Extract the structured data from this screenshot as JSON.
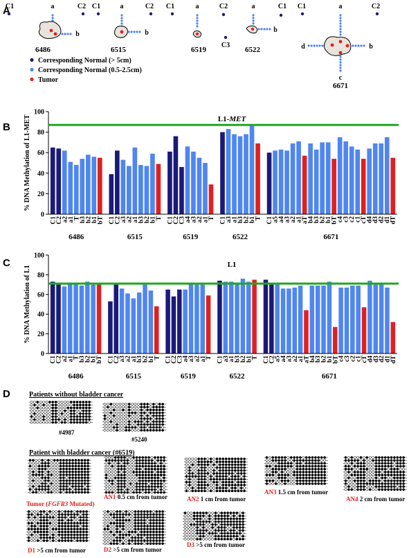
{
  "panelA": {
    "letter": "A",
    "legend": [
      {
        "label": "Corresponding Normal (> 5cm)",
        "color": "#1a1a7a"
      },
      {
        "label": "Corresponding Normal (0.5-2.5cm)",
        "color": "#4f86f0"
      },
      {
        "label": "Tumor",
        "color": "#e02020"
      }
    ],
    "patients": [
      "6486",
      "6515",
      "6519",
      "6522",
      "6671"
    ],
    "tissue_labels": {
      "C1": "C1",
      "C2": "C2",
      "C3": "C3",
      "a": "a",
      "b": "b",
      "c": "c",
      "d": "d"
    }
  },
  "colors": {
    "dark": "#1a1a7a",
    "light": "#4f86f0",
    "tumor": "#e02020",
    "line": "#1fa81f"
  },
  "chart_data": [
    {
      "type": "bar",
      "panel": "B",
      "title": "L1-MET",
      "ylabel": "% DNA Methylation of L1-MET",
      "ylim": [
        0,
        100
      ],
      "yticks": [
        0,
        20,
        40,
        60,
        80,
        100
      ],
      "reference_line": 87,
      "groups": [
        {
          "patient": "6486",
          "bars": [
            {
              "label": "C1",
              "value": 65,
              "kind": "dark"
            },
            {
              "label": "C2",
              "value": 64,
              "kind": "dark"
            },
            {
              "label": "a2",
              "value": 62,
              "kind": "light"
            },
            {
              "label": "a1",
              "value": 51,
              "kind": "light"
            },
            {
              "label": "T",
              "value": 48,
              "kind": "light"
            },
            {
              "label": "b3",
              "value": 54,
              "kind": "light"
            },
            {
              "label": "b2",
              "value": 58,
              "kind": "light"
            },
            {
              "label": "b1",
              "value": 56,
              "kind": "light"
            },
            {
              "label": "bT",
              "value": 55,
              "kind": "tumor"
            }
          ]
        },
        {
          "patient": "6515",
          "bars": [
            {
              "label": "C1",
              "value": 39,
              "kind": "dark"
            },
            {
              "label": "C2",
              "value": 62,
              "kind": "dark"
            },
            {
              "label": "a3",
              "value": 53,
              "kind": "light"
            },
            {
              "label": "a2",
              "value": 47,
              "kind": "light"
            },
            {
              "label": "a1",
              "value": 65,
              "kind": "light"
            },
            {
              "label": "b3",
              "value": 48,
              "kind": "light"
            },
            {
              "label": "b2",
              "value": 47,
              "kind": "light"
            },
            {
              "label": "b1",
              "value": 59,
              "kind": "light"
            },
            {
              "label": "T",
              "value": 49,
              "kind": "tumor"
            }
          ]
        },
        {
          "patient": "6519",
          "bars": [
            {
              "label": "C1",
              "value": 61,
              "kind": "dark"
            },
            {
              "label": "C2",
              "value": 76,
              "kind": "dark"
            },
            {
              "label": "C3",
              "value": 46,
              "kind": "dark"
            },
            {
              "label": "a4",
              "value": 66,
              "kind": "light"
            },
            {
              "label": "a3",
              "value": 61,
              "kind": "light"
            },
            {
              "label": "a2",
              "value": 55,
              "kind": "light"
            },
            {
              "label": "a1",
              "value": 50,
              "kind": "light"
            },
            {
              "label": "T",
              "value": 29,
              "kind": "tumor"
            }
          ]
        },
        {
          "patient": "6522",
          "bars": [
            {
              "label": "C1",
              "value": 80,
              "kind": "dark"
            },
            {
              "label": "a3",
              "value": 83,
              "kind": "light"
            },
            {
              "label": "a1",
              "value": 78,
              "kind": "light"
            },
            {
              "label": "b3",
              "value": 76,
              "kind": "light"
            },
            {
              "label": "b2",
              "value": 78,
              "kind": "light"
            },
            {
              "label": "b1",
              "value": 87,
              "kind": "light"
            },
            {
              "label": "T",
              "value": 69,
              "kind": "tumor"
            }
          ]
        },
        {
          "patient": "6671",
          "bars": [
            {
              "label": "C1",
              "value": 60,
              "kind": "dark"
            },
            {
              "label": "a5",
              "value": 62,
              "kind": "light"
            },
            {
              "label": "a4",
              "value": 63,
              "kind": "light"
            },
            {
              "label": "a3",
              "value": 62,
              "kind": "light"
            },
            {
              "label": "a2",
              "value": 69,
              "kind": "light"
            },
            {
              "label": "a1",
              "value": 71,
              "kind": "light"
            },
            {
              "label": "aT",
              "value": 57,
              "kind": "tumor"
            },
            {
              "label": "b4",
              "value": 69,
              "kind": "light"
            },
            {
              "label": "b3",
              "value": 63,
              "kind": "light"
            },
            {
              "label": "b2",
              "value": 70,
              "kind": "light"
            },
            {
              "label": "b1",
              "value": 70,
              "kind": "light"
            },
            {
              "label": "bT",
              "value": 54,
              "kind": "tumor"
            },
            {
              "label": "c4",
              "value": 75,
              "kind": "light"
            },
            {
              "label": "c3",
              "value": 71,
              "kind": "light"
            },
            {
              "label": "c2",
              "value": 66,
              "kind": "light"
            },
            {
              "label": "c1",
              "value": 63,
              "kind": "light"
            },
            {
              "label": "cT",
              "value": 54,
              "kind": "tumor"
            },
            {
              "label": "d4",
              "value": 64,
              "kind": "light"
            },
            {
              "label": "d3",
              "value": 69,
              "kind": "light"
            },
            {
              "label": "d2",
              "value": 69,
              "kind": "light"
            },
            {
              "label": "d1",
              "value": 75,
              "kind": "light"
            },
            {
              "label": "dT",
              "value": 55,
              "kind": "tumor"
            }
          ]
        }
      ]
    },
    {
      "type": "bar",
      "panel": "C",
      "title": "L1",
      "ylabel": "% DNA Methylation of L1",
      "ylim": [
        0,
        100
      ],
      "yticks": [
        0,
        20,
        40,
        60,
        80,
        100
      ],
      "reference_line": 71,
      "groups": [
        {
          "patient": "6486",
          "bars": [
            {
              "label": "C1",
              "value": 73,
              "kind": "dark"
            },
            {
              "label": "C2",
              "value": 70,
              "kind": "dark"
            },
            {
              "label": "a2",
              "value": 68,
              "kind": "light"
            },
            {
              "label": "a1",
              "value": 72,
              "kind": "light"
            },
            {
              "label": "T",
              "value": 72,
              "kind": "light"
            },
            {
              "label": "b3",
              "value": 69,
              "kind": "light"
            },
            {
              "label": "b2",
              "value": 73,
              "kind": "light"
            },
            {
              "label": "b1",
              "value": 70,
              "kind": "light"
            },
            {
              "label": "bT",
              "value": 70,
              "kind": "tumor"
            }
          ]
        },
        {
          "patient": "6515",
          "bars": [
            {
              "label": "C1",
              "value": 53,
              "kind": "dark"
            },
            {
              "label": "C2",
              "value": 70,
              "kind": "dark"
            },
            {
              "label": "a3",
              "value": 66,
              "kind": "light"
            },
            {
              "label": "a2",
              "value": 61,
              "kind": "light"
            },
            {
              "label": "a1",
              "value": 56,
              "kind": "light"
            },
            {
              "label": "b3",
              "value": 62,
              "kind": "light"
            },
            {
              "label": "b2",
              "value": 70,
              "kind": "light"
            },
            {
              "label": "b1",
              "value": 64,
              "kind": "light"
            },
            {
              "label": "T",
              "value": 48,
              "kind": "tumor"
            }
          ]
        },
        {
          "patient": "6519",
          "bars": [
            {
              "label": "C1",
              "value": 65,
              "kind": "dark"
            },
            {
              "label": "C2",
              "value": 58,
              "kind": "dark"
            },
            {
              "label": "C3",
              "value": 65,
              "kind": "dark"
            },
            {
              "label": "a4",
              "value": 65,
              "kind": "light"
            },
            {
              "label": "a3",
              "value": 71,
              "kind": "light"
            },
            {
              "label": "a2",
              "value": 70,
              "kind": "light"
            },
            {
              "label": "a1",
              "value": 70,
              "kind": "light"
            },
            {
              "label": "T",
              "value": 59,
              "kind": "tumor"
            }
          ]
        },
        {
          "patient": "6522",
          "bars": [
            {
              "label": "C1",
              "value": 74,
              "kind": "dark"
            },
            {
              "label": "a3",
              "value": 73,
              "kind": "light"
            },
            {
              "label": "a1",
              "value": 73,
              "kind": "light"
            },
            {
              "label": "b3",
              "value": 72,
              "kind": "light"
            },
            {
              "label": "b2",
              "value": 76,
              "kind": "light"
            },
            {
              "label": "b1",
              "value": 73,
              "kind": "light"
            },
            {
              "label": "T",
              "value": 75,
              "kind": "tumor"
            }
          ]
        },
        {
          "patient": "6671",
          "bars": [
            {
              "label": "C1",
              "value": 75,
              "kind": "dark"
            },
            {
              "label": "C2",
              "value": 70,
              "kind": "dark"
            },
            {
              "label": "a5",
              "value": 70,
              "kind": "light"
            },
            {
              "label": "a4",
              "value": 66,
              "kind": "light"
            },
            {
              "label": "a3",
              "value": 66,
              "kind": "light"
            },
            {
              "label": "a2",
              "value": 67,
              "kind": "light"
            },
            {
              "label": "a1",
              "value": 69,
              "kind": "light"
            },
            {
              "label": "aT",
              "value": 44,
              "kind": "tumor"
            },
            {
              "label": "b4",
              "value": 69,
              "kind": "light"
            },
            {
              "label": "b3",
              "value": 69,
              "kind": "light"
            },
            {
              "label": "b2",
              "value": 69,
              "kind": "light"
            },
            {
              "label": "b1",
              "value": 73,
              "kind": "light"
            },
            {
              "label": "bT",
              "value": 27,
              "kind": "tumor"
            },
            {
              "label": "c4",
              "value": 67,
              "kind": "light"
            },
            {
              "label": "c3",
              "value": 67,
              "kind": "light"
            },
            {
              "label": "c2",
              "value": 69,
              "kind": "light"
            },
            {
              "label": "c1",
              "value": 69,
              "kind": "light"
            },
            {
              "label": "cT",
              "value": 47,
              "kind": "tumor"
            },
            {
              "label": "d4",
              "value": 74,
              "kind": "light"
            },
            {
              "label": "d3",
              "value": 71,
              "kind": "light"
            },
            {
              "label": "d2",
              "value": 71,
              "kind": "light"
            },
            {
              "label": "d1",
              "value": 67,
              "kind": "light"
            },
            {
              "label": "dT",
              "value": 32,
              "kind": "tumor"
            }
          ]
        }
      ]
    }
  ],
  "panelD": {
    "letter": "D",
    "heading_without": "Patients without bladder cancer",
    "heading_with": "Patient with bladder cancer (#6519)",
    "controls": [
      {
        "label": "#4987"
      },
      {
        "label": "#5240"
      }
    ],
    "samples": [
      {
        "red": "Tumor (",
        "italic": "FGFR3",
        "red2": " Mutated)",
        "black": ""
      },
      {
        "red": "AN1",
        "italic": "",
        "red2": "",
        "black": " 0.5 cm from tumor"
      },
      {
        "red": "AN2",
        "italic": "",
        "red2": "",
        "black": " 1 cm from tumor"
      },
      {
        "red": "AN3",
        "italic": "",
        "red2": "",
        "black": " 1.5 cm from tumor"
      },
      {
        "red": "AN4",
        "italic": "",
        "red2": "",
        "black": " 2 cm from tumor"
      },
      {
        "red": "D1",
        "italic": "",
        "red2": "",
        "black": " >5 cm from tumor"
      },
      {
        "red": "D2",
        "italic": "",
        "red2": "",
        "black": " >5 cm from tumor"
      },
      {
        "red": "D3",
        "italic": "",
        "red2": "",
        "black": " >5 cm from tumor"
      }
    ]
  }
}
